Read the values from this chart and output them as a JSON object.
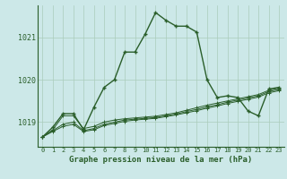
{
  "background_color": "#cce8e8",
  "grid_color": "#aaccbb",
  "line_color": "#2a5e2a",
  "title": "Graphe pression niveau de la mer (hPa)",
  "xlim": [
    -0.5,
    23.5
  ],
  "ylim": [
    1018.42,
    1021.75
  ],
  "x_ticks": [
    0,
    1,
    2,
    3,
    4,
    5,
    6,
    7,
    8,
    9,
    10,
    11,
    12,
    13,
    14,
    15,
    16,
    17,
    18,
    19,
    20,
    21,
    22,
    23
  ],
  "y_ticks": [
    1019,
    1020,
    1021
  ],
  "main_series": [
    1018.65,
    1018.88,
    1019.2,
    1019.2,
    1018.82,
    1019.35,
    1019.82,
    1020.0,
    1020.65,
    1020.65,
    1021.08,
    1021.58,
    1021.4,
    1021.26,
    1021.26,
    1021.12,
    1020.0,
    1019.58,
    1019.62,
    1019.58,
    1019.26,
    1019.15,
    1019.78,
    1019.82
  ],
  "flat_series": [
    [
      1018.65,
      1018.82,
      1019.15,
      1019.15,
      1018.85,
      1018.9,
      1019.0,
      1019.05,
      1019.08,
      1019.1,
      1019.12,
      1019.14,
      1019.18,
      1019.22,
      1019.28,
      1019.34,
      1019.4,
      1019.45,
      1019.5,
      1019.55,
      1019.6,
      1019.65,
      1019.75,
      1019.8
    ],
    [
      1018.65,
      1018.8,
      1018.95,
      1019.0,
      1018.8,
      1018.85,
      1018.95,
      1019.0,
      1019.05,
      1019.07,
      1019.09,
      1019.11,
      1019.15,
      1019.19,
      1019.25,
      1019.3,
      1019.36,
      1019.41,
      1019.47,
      1019.52,
      1019.57,
      1019.62,
      1019.72,
      1019.77
    ],
    [
      1018.65,
      1018.78,
      1018.9,
      1018.95,
      1018.78,
      1018.82,
      1018.92,
      1018.97,
      1019.02,
      1019.05,
      1019.07,
      1019.09,
      1019.13,
      1019.17,
      1019.22,
      1019.27,
      1019.33,
      1019.38,
      1019.44,
      1019.49,
      1019.54,
      1019.59,
      1019.69,
      1019.74
    ]
  ]
}
